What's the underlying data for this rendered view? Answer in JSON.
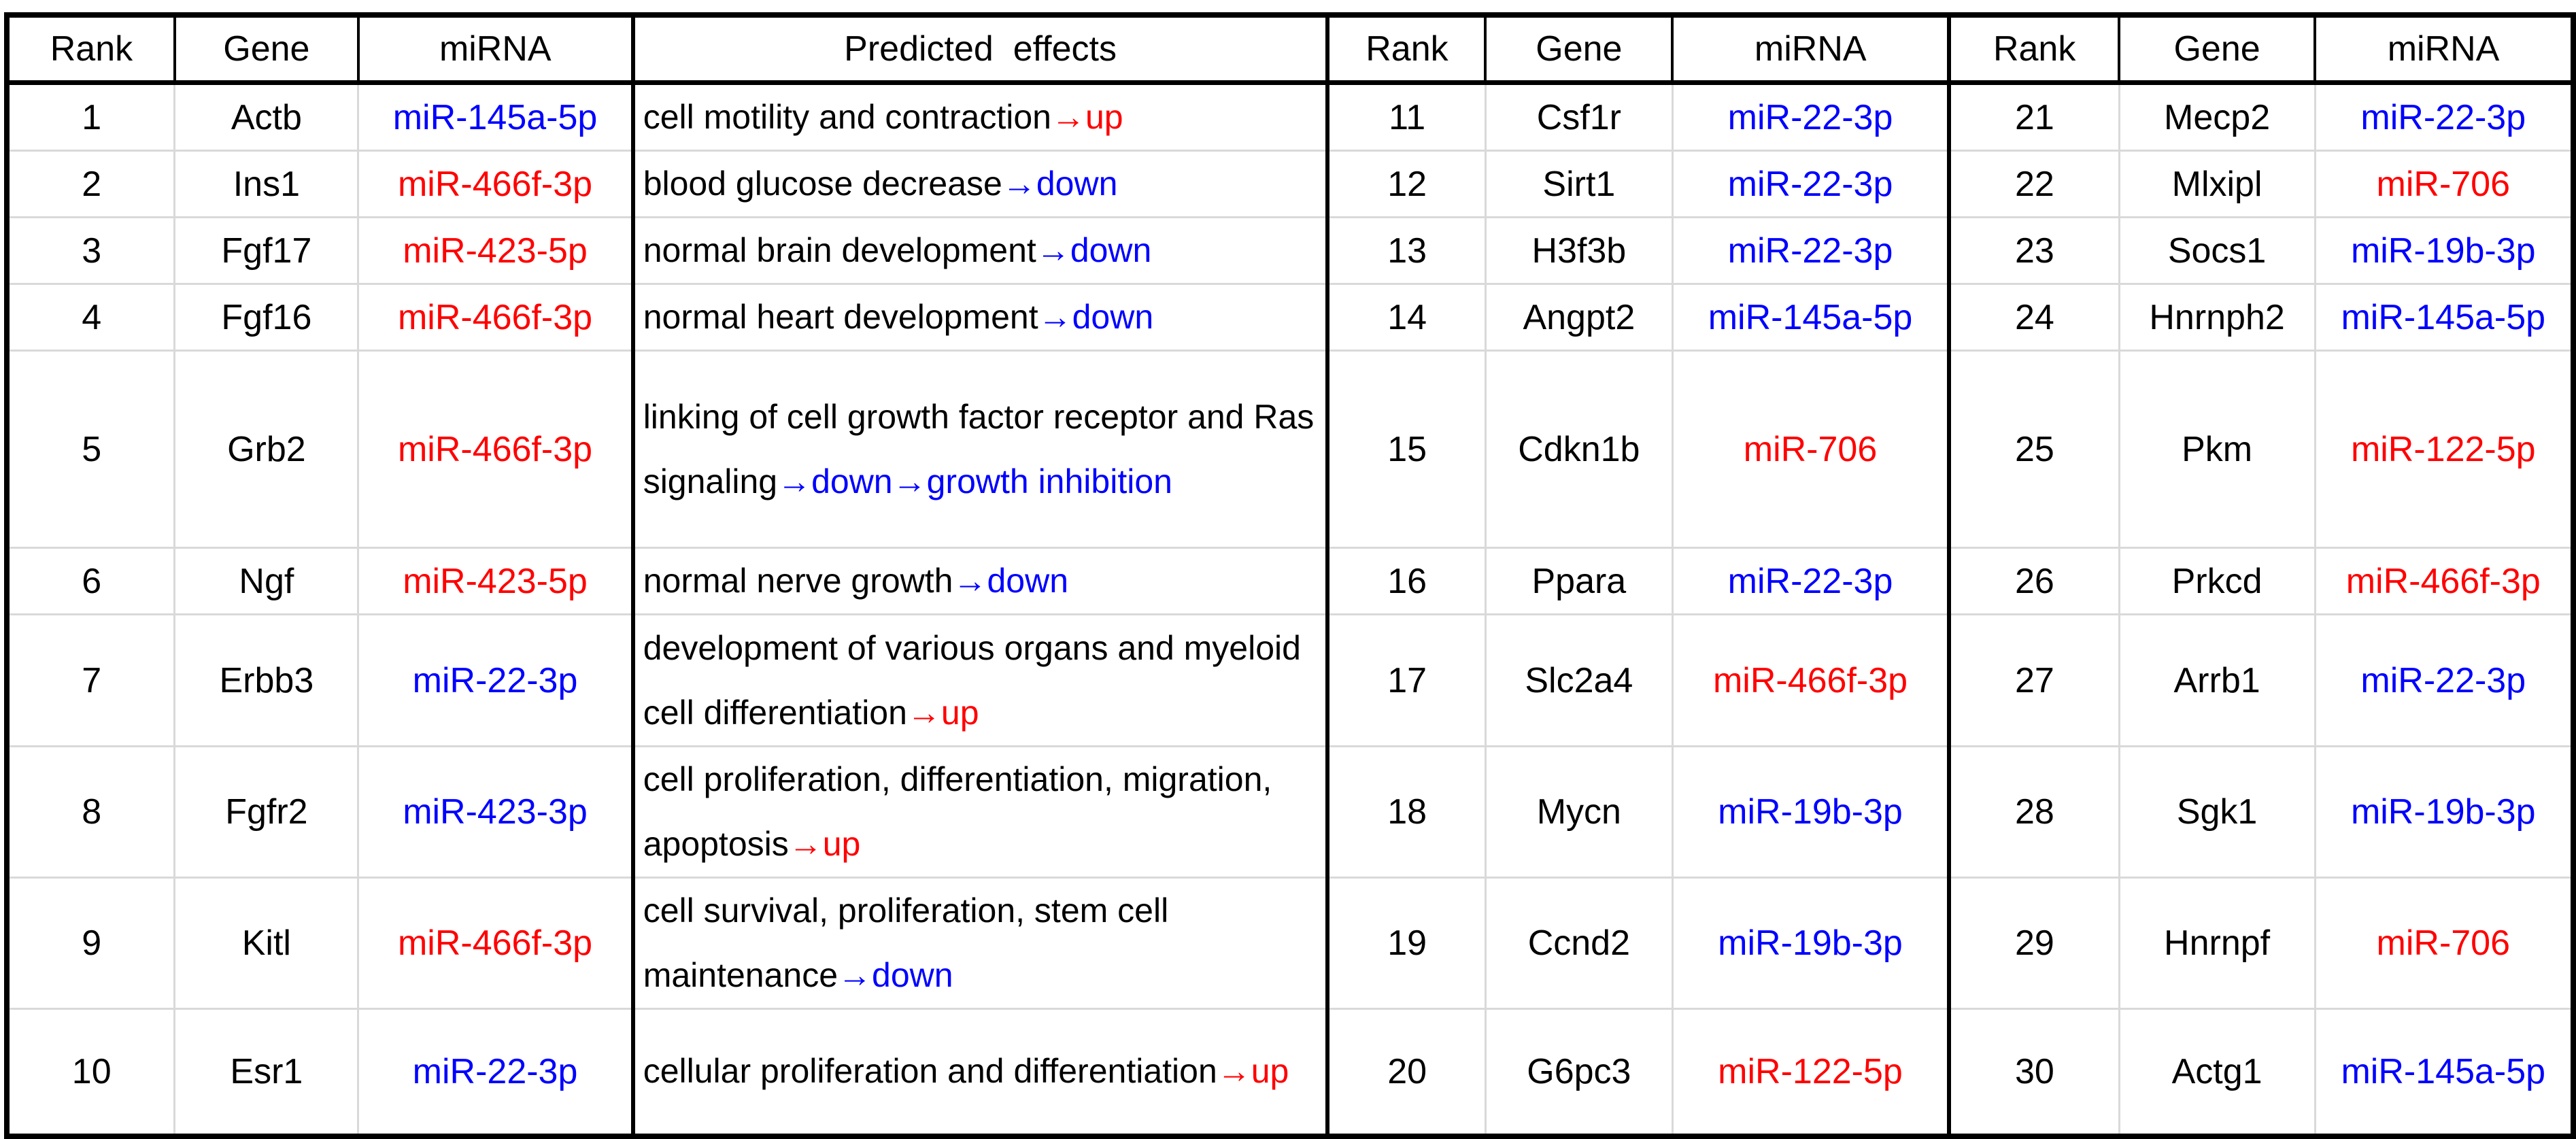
{
  "colors": {
    "mirna_blue": "#0000ff",
    "mirna_red": "#ff0000",
    "effect_up_red": "#ff0000",
    "effect_down_blue": "#0000ff",
    "grid_line_gray": "#d9d9d9",
    "border_black": "#000000",
    "background": "#ffffff"
  },
  "chart_data": {
    "type": "table",
    "title": "",
    "layout": "three ranked sections side by side; left section has an extra Predicted effects column; grid on",
    "column_headers": {
      "rank": "Rank",
      "gene": "Gene",
      "mirna": "miRNA",
      "effects": "Predicted  effects"
    },
    "records": [
      {
        "rank": "1",
        "gene": "Actb",
        "mirna": "miR-145a-5p",
        "mirna_color": "blue",
        "effect_text": "cell motility and contraction",
        "effect_result": "→up",
        "effect_color": "red"
      },
      {
        "rank": "2",
        "gene": "Ins1",
        "mirna": "miR-466f-3p",
        "mirna_color": "red",
        "effect_text": "blood glucose decrease",
        "effect_result": "→down",
        "effect_color": "blue"
      },
      {
        "rank": "3",
        "gene": "Fgf17",
        "mirna": "miR-423-5p",
        "mirna_color": "red",
        "effect_text": "normal brain development",
        "effect_result": "→down",
        "effect_color": "blue"
      },
      {
        "rank": "4",
        "gene": "Fgf16",
        "mirna": "miR-466f-3p",
        "mirna_color": "red",
        "effect_text": "normal heart development",
        "effect_result": "→down",
        "effect_color": "blue"
      },
      {
        "rank": "5",
        "gene": "Grb2",
        "mirna": "miR-466f-3p",
        "mirna_color": "red",
        "effect_text": "linking of cell growth factor receptor and Ras signaling",
        "effect_result": "→down→growth inhibition",
        "effect_color": "blue"
      },
      {
        "rank": "6",
        "gene": "Ngf",
        "mirna": "miR-423-5p",
        "mirna_color": "red",
        "effect_text": "normal nerve growth",
        "effect_result": "→down",
        "effect_color": "blue"
      },
      {
        "rank": "7",
        "gene": "Erbb3",
        "mirna": "miR-22-3p",
        "mirna_color": "blue",
        "effect_text": "development of various organs and myeloid cell differentiation",
        "effect_result": "→up",
        "effect_color": "red"
      },
      {
        "rank": "8",
        "gene": "Fgfr2",
        "mirna": "miR-423-3p",
        "mirna_color": "blue",
        "effect_text": "cell proliferation, differentiation, migration, apoptosis",
        "effect_result": "→up",
        "effect_color": "red"
      },
      {
        "rank": "9",
        "gene": "Kitl",
        "mirna": "miR-466f-3p",
        "mirna_color": "red",
        "effect_text": "cell survival, proliferation, stem cell maintenance",
        "effect_result": "→down",
        "effect_color": "blue"
      },
      {
        "rank": "10",
        "gene": "Esr1",
        "mirna": "miR-22-3p",
        "mirna_color": "blue",
        "effect_text": "cellular proliferation and differentiation",
        "effect_result": "→up",
        "effect_color": "red"
      },
      {
        "rank": "11",
        "gene": "Csf1r",
        "mirna": "miR-22-3p",
        "mirna_color": "blue"
      },
      {
        "rank": "12",
        "gene": "Sirt1",
        "mirna": "miR-22-3p",
        "mirna_color": "blue"
      },
      {
        "rank": "13",
        "gene": "H3f3b",
        "mirna": "miR-22-3p",
        "mirna_color": "blue"
      },
      {
        "rank": "14",
        "gene": "Angpt2",
        "mirna": "miR-145a-5p",
        "mirna_color": "blue"
      },
      {
        "rank": "15",
        "gene": "Cdkn1b",
        "mirna": "miR-706",
        "mirna_color": "red"
      },
      {
        "rank": "16",
        "gene": "Ppara",
        "mirna": "miR-22-3p",
        "mirna_color": "blue"
      },
      {
        "rank": "17",
        "gene": "Slc2a4",
        "mirna": "miR-466f-3p",
        "mirna_color": "red"
      },
      {
        "rank": "18",
        "gene": "Mycn",
        "mirna": "miR-19b-3p",
        "mirna_color": "blue"
      },
      {
        "rank": "19",
        "gene": "Ccnd2",
        "mirna": "miR-19b-3p",
        "mirna_color": "blue"
      },
      {
        "rank": "20",
        "gene": "G6pc3",
        "mirna": "miR-122-5p",
        "mirna_color": "red"
      },
      {
        "rank": "21",
        "gene": "Mecp2",
        "mirna": "miR-22-3p",
        "mirna_color": "blue"
      },
      {
        "rank": "22",
        "gene": "Mlxipl",
        "mirna": "miR-706",
        "mirna_color": "red"
      },
      {
        "rank": "23",
        "gene": "Socs1",
        "mirna": "miR-19b-3p",
        "mirna_color": "blue"
      },
      {
        "rank": "24",
        "gene": "Hnrnph2",
        "mirna": "miR-145a-5p",
        "mirna_color": "blue"
      },
      {
        "rank": "25",
        "gene": "Pkm",
        "mirna": "miR-122-5p",
        "mirna_color": "red"
      },
      {
        "rank": "26",
        "gene": "Prkcd",
        "mirna": "miR-466f-3p",
        "mirna_color": "red"
      },
      {
        "rank": "27",
        "gene": "Arrb1",
        "mirna": "miR-22-3p",
        "mirna_color": "blue"
      },
      {
        "rank": "28",
        "gene": "Sgk1",
        "mirna": "miR-19b-3p",
        "mirna_color": "blue"
      },
      {
        "rank": "29",
        "gene": "Hnrnpf",
        "mirna": "miR-706",
        "mirna_color": "red"
      },
      {
        "rank": "30",
        "gene": "Actg1",
        "mirna": "miR-145a-5p",
        "mirna_color": "blue"
      }
    ]
  }
}
